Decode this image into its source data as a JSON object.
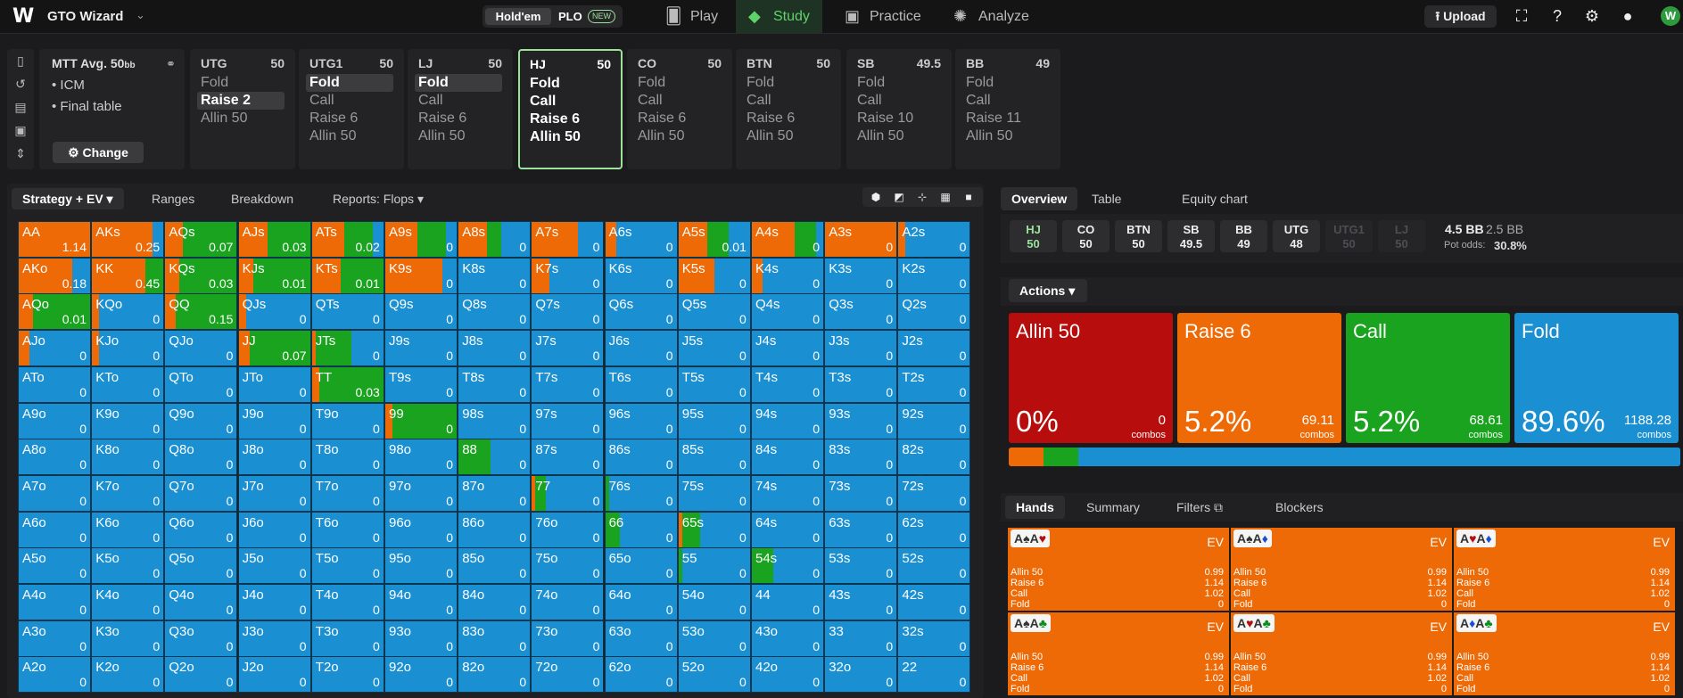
{
  "app": {
    "brand": "GTO Wizard",
    "mode_holdem": "Hold'em",
    "mode_plo": "PLO",
    "new_badge": "NEW"
  },
  "nav": [
    {
      "label": "Play",
      "icon": "card-icon"
    },
    {
      "label": "Study",
      "icon": "graduation-cap-icon",
      "active": true
    },
    {
      "label": "Practice",
      "icon": "gamepad-icon"
    },
    {
      "label": "Analyze",
      "icon": "bulb-icon"
    }
  ],
  "top_right": {
    "upload": "Upload"
  },
  "mtt": {
    "title": "MTT",
    "avg": "Avg. 50",
    "bb": "bb",
    "items": [
      "ICM",
      "Final table"
    ],
    "change": "Change"
  },
  "positions": [
    {
      "name": "UTG",
      "stack": "50",
      "actions": [
        "Fold",
        "Raise 2",
        "Allin 50"
      ],
      "selected": 1
    },
    {
      "name": "UTG1",
      "stack": "50",
      "actions": [
        "Fold",
        "Call",
        "Raise 6",
        "Allin 50"
      ],
      "selected": 0
    },
    {
      "name": "LJ",
      "stack": "50",
      "actions": [
        "Fold",
        "Call",
        "Raise 6",
        "Allin 50"
      ],
      "selected": 0
    },
    {
      "name": "HJ",
      "stack": "50",
      "actions": [
        "Fold",
        "Call",
        "Raise 6",
        "Allin 50"
      ],
      "selected": -1,
      "current": true
    },
    {
      "name": "CO",
      "stack": "50",
      "actions": [
        "Fold",
        "Call",
        "Raise 6",
        "Allin 50"
      ],
      "selected": -1
    },
    {
      "name": "BTN",
      "stack": "50",
      "actions": [
        "Fold",
        "Call",
        "Raise 6",
        "Allin 50"
      ],
      "selected": -1
    },
    {
      "name": "SB",
      "stack": "49.5",
      "actions": [
        "Fold",
        "Call",
        "Raise 10",
        "Allin 50"
      ],
      "selected": -1
    },
    {
      "name": "BB",
      "stack": "49",
      "actions": [
        "Fold",
        "Call",
        "Raise 11",
        "Allin 50"
      ],
      "selected": -1
    }
  ],
  "left_tabs": {
    "strategy": "Strategy + EV",
    "ranges": "Ranges",
    "breakdown": "Breakdown",
    "reports": "Reports: Flops"
  },
  "colors": {
    "fold": "#1a8fd2",
    "call": "#1aa31f",
    "raise": "#ee6a06",
    "allin": "#b80d0d"
  },
  "matrix": [
    [
      [
        "AA",
        "1.14",
        0,
        0,
        100
      ],
      [
        "AKs",
        "0.25",
        0,
        0,
        85
      ],
      [
        "AQs",
        "0.07",
        0,
        75,
        25
      ],
      [
        "AJs",
        "0.03",
        0,
        60,
        40
      ],
      [
        "ATs",
        "0.02",
        0,
        40,
        45
      ],
      [
        "A9s",
        "0",
        15,
        40,
        45
      ],
      [
        "A8s",
        "0",
        40,
        20,
        40
      ],
      [
        "A7s",
        "0",
        35,
        0,
        65
      ],
      [
        "A6s",
        "0",
        85,
        0,
        15
      ],
      [
        "A5s",
        "0.01",
        30,
        30,
        40
      ],
      [
        "A4s",
        "0",
        10,
        30,
        60
      ],
      [
        "A3s",
        "0",
        0,
        0,
        100
      ],
      [
        "A2s",
        "0",
        90,
        0,
        10
      ]
    ],
    [
      [
        "AKo",
        "0.18",
        25,
        0,
        75
      ],
      [
        "KK",
        "0.45",
        0,
        25,
        75
      ],
      [
        "KQs",
        "0.03",
        0,
        80,
        20
      ],
      [
        "KJs",
        "0.01",
        0,
        80,
        20
      ],
      [
        "KTs",
        "0.01",
        0,
        60,
        40
      ],
      [
        "K9s",
        "0",
        20,
        0,
        80
      ],
      [
        "K8s",
        "0",
        100,
        0,
        0
      ],
      [
        "K7s",
        "0",
        75,
        0,
        25
      ],
      [
        "K6s",
        "0",
        100,
        0,
        0
      ],
      [
        "K5s",
        "0",
        50,
        0,
        50
      ],
      [
        "K4s",
        "0",
        85,
        0,
        15
      ],
      [
        "K3s",
        "0",
        100,
        0,
        0
      ],
      [
        "K2s",
        "0",
        100,
        0,
        0
      ]
    ],
    [
      [
        "AQo",
        "0.01",
        0,
        80,
        20
      ],
      [
        "KQo",
        "0",
        90,
        0,
        10
      ],
      [
        "QQ",
        "0.15",
        0,
        85,
        15
      ],
      [
        "QJs",
        "0",
        90,
        0,
        10
      ],
      [
        "QTs",
        "0",
        100,
        0,
        0
      ],
      [
        "Q9s",
        "0",
        100,
        0,
        0
      ],
      [
        "Q8s",
        "0",
        100,
        0,
        0
      ],
      [
        "Q7s",
        "0",
        100,
        0,
        0
      ],
      [
        "Q6s",
        "0",
        100,
        0,
        0
      ],
      [
        "Q5s",
        "0",
        100,
        0,
        0
      ],
      [
        "Q4s",
        "0",
        100,
        0,
        0
      ],
      [
        "Q3s",
        "0",
        100,
        0,
        0
      ],
      [
        "Q2s",
        "0",
        100,
        0,
        0
      ]
    ],
    [
      [
        "AJo",
        "0",
        85,
        0,
        15
      ],
      [
        "KJo",
        "0",
        90,
        0,
        10
      ],
      [
        "QJo",
        "0",
        100,
        0,
        0
      ],
      [
        "JJ",
        "0.07",
        0,
        85,
        15
      ],
      [
        "JTs",
        "0",
        45,
        50,
        5
      ],
      [
        "J9s",
        "0",
        100,
        0,
        0
      ],
      [
        "J8s",
        "0",
        100,
        0,
        0
      ],
      [
        "J7s",
        "0",
        100,
        0,
        0
      ],
      [
        "J6s",
        "0",
        100,
        0,
        0
      ],
      [
        "J5s",
        "0",
        100,
        0,
        0
      ],
      [
        "J4s",
        "0",
        100,
        0,
        0
      ],
      [
        "J3s",
        "0",
        100,
        0,
        0
      ],
      [
        "J2s",
        "0",
        100,
        0,
        0
      ]
    ],
    [
      [
        "ATo",
        "0",
        100,
        0,
        0
      ],
      [
        "KTo",
        "0",
        100,
        0,
        0
      ],
      [
        "QTo",
        "0",
        100,
        0,
        0
      ],
      [
        "JTo",
        "0",
        100,
        0,
        0
      ],
      [
        "TT",
        "0.03",
        0,
        90,
        10
      ],
      [
        "T9s",
        "0",
        100,
        0,
        0
      ],
      [
        "T8s",
        "0",
        100,
        0,
        0
      ],
      [
        "T7s",
        "0",
        100,
        0,
        0
      ],
      [
        "T6s",
        "0",
        100,
        0,
        0
      ],
      [
        "T5s",
        "0",
        100,
        0,
        0
      ],
      [
        "T4s",
        "0",
        100,
        0,
        0
      ],
      [
        "T3s",
        "0",
        100,
        0,
        0
      ],
      [
        "T2s",
        "0",
        100,
        0,
        0
      ]
    ],
    [
      [
        "A9o",
        "0",
        100,
        0,
        0
      ],
      [
        "K9o",
        "0",
        100,
        0,
        0
      ],
      [
        "Q9o",
        "0",
        100,
        0,
        0
      ],
      [
        "J9o",
        "0",
        100,
        0,
        0
      ],
      [
        "T9o",
        "0",
        100,
        0,
        0
      ],
      [
        "99",
        "0",
        0,
        90,
        10
      ],
      [
        "98s",
        "0",
        100,
        0,
        0
      ],
      [
        "97s",
        "0",
        100,
        0,
        0
      ],
      [
        "96s",
        "0",
        100,
        0,
        0
      ],
      [
        "95s",
        "0",
        100,
        0,
        0
      ],
      [
        "94s",
        "0",
        100,
        0,
        0
      ],
      [
        "93s",
        "0",
        100,
        0,
        0
      ],
      [
        "92s",
        "0",
        100,
        0,
        0
      ]
    ],
    [
      [
        "A8o",
        "0",
        100,
        0,
        0
      ],
      [
        "K8o",
        "0",
        100,
        0,
        0
      ],
      [
        "Q8o",
        "0",
        100,
        0,
        0
      ],
      [
        "J8o",
        "0",
        100,
        0,
        0
      ],
      [
        "T8o",
        "0",
        100,
        0,
        0
      ],
      [
        "98o",
        "0",
        100,
        0,
        0
      ],
      [
        "88",
        "0",
        55,
        45,
        0
      ],
      [
        "87s",
        "0",
        100,
        0,
        0
      ],
      [
        "86s",
        "0",
        100,
        0,
        0
      ],
      [
        "85s",
        "0",
        100,
        0,
        0
      ],
      [
        "84s",
        "0",
        100,
        0,
        0
      ],
      [
        "83s",
        "0",
        100,
        0,
        0
      ],
      [
        "82s",
        "0",
        100,
        0,
        0
      ]
    ],
    [
      [
        "A7o",
        "0",
        100,
        0,
        0
      ],
      [
        "K7o",
        "0",
        100,
        0,
        0
      ],
      [
        "Q7o",
        "0",
        100,
        0,
        0
      ],
      [
        "J7o",
        "0",
        100,
        0,
        0
      ],
      [
        "T7o",
        "0",
        100,
        0,
        0
      ],
      [
        "97o",
        "0",
        100,
        0,
        0
      ],
      [
        "87o",
        "0",
        100,
        0,
        0
      ],
      [
        "77",
        "0",
        80,
        15,
        5
      ],
      [
        "76s",
        "0",
        95,
        5,
        0
      ],
      [
        "75s",
        "0",
        100,
        0,
        0
      ],
      [
        "74s",
        "0",
        100,
        0,
        0
      ],
      [
        "73s",
        "0",
        100,
        0,
        0
      ],
      [
        "72s",
        "0",
        100,
        0,
        0
      ]
    ],
    [
      [
        "A6o",
        "0",
        100,
        0,
        0
      ],
      [
        "K6o",
        "0",
        100,
        0,
        0
      ],
      [
        "Q6o",
        "0",
        100,
        0,
        0
      ],
      [
        "J6o",
        "0",
        100,
        0,
        0
      ],
      [
        "T6o",
        "0",
        100,
        0,
        0
      ],
      [
        "96o",
        "0",
        100,
        0,
        0
      ],
      [
        "86o",
        "0",
        100,
        0,
        0
      ],
      [
        "76o",
        "0",
        100,
        0,
        0
      ],
      [
        "66",
        "0",
        80,
        20,
        0
      ],
      [
        "65s",
        "0",
        70,
        25,
        5
      ],
      [
        "64s",
        "0",
        100,
        0,
        0
      ],
      [
        "63s",
        "0",
        100,
        0,
        0
      ],
      [
        "62s",
        "0",
        100,
        0,
        0
      ]
    ],
    [
      [
        "A5o",
        "0",
        100,
        0,
        0
      ],
      [
        "K5o",
        "0",
        100,
        0,
        0
      ],
      [
        "Q5o",
        "0",
        100,
        0,
        0
      ],
      [
        "J5o",
        "0",
        100,
        0,
        0
      ],
      [
        "T5o",
        "0",
        100,
        0,
        0
      ],
      [
        "95o",
        "0",
        100,
        0,
        0
      ],
      [
        "85o",
        "0",
        100,
        0,
        0
      ],
      [
        "75o",
        "0",
        100,
        0,
        0
      ],
      [
        "65o",
        "0",
        100,
        0,
        0
      ],
      [
        "55",
        "0",
        95,
        5,
        0
      ],
      [
        "54s",
        "0",
        70,
        30,
        0
      ],
      [
        "53s",
        "0",
        100,
        0,
        0
      ],
      [
        "52s",
        "0",
        100,
        0,
        0
      ]
    ],
    [
      [
        "A4o",
        "0",
        100,
        0,
        0
      ],
      [
        "K4o",
        "0",
        100,
        0,
        0
      ],
      [
        "Q4o",
        "0",
        100,
        0,
        0
      ],
      [
        "J4o",
        "0",
        100,
        0,
        0
      ],
      [
        "T4o",
        "0",
        100,
        0,
        0
      ],
      [
        "94o",
        "0",
        100,
        0,
        0
      ],
      [
        "84o",
        "0",
        100,
        0,
        0
      ],
      [
        "74o",
        "0",
        100,
        0,
        0
      ],
      [
        "64o",
        "0",
        100,
        0,
        0
      ],
      [
        "54o",
        "0",
        100,
        0,
        0
      ],
      [
        "44",
        "0",
        100,
        0,
        0
      ],
      [
        "43s",
        "0",
        100,
        0,
        0
      ],
      [
        "42s",
        "0",
        100,
        0,
        0
      ]
    ],
    [
      [
        "A3o",
        "0",
        100,
        0,
        0
      ],
      [
        "K3o",
        "0",
        100,
        0,
        0
      ],
      [
        "Q3o",
        "0",
        100,
        0,
        0
      ],
      [
        "J3o",
        "0",
        100,
        0,
        0
      ],
      [
        "T3o",
        "0",
        100,
        0,
        0
      ],
      [
        "93o",
        "0",
        100,
        0,
        0
      ],
      [
        "83o",
        "0",
        100,
        0,
        0
      ],
      [
        "73o",
        "0",
        100,
        0,
        0
      ],
      [
        "63o",
        "0",
        100,
        0,
        0
      ],
      [
        "53o",
        "0",
        100,
        0,
        0
      ],
      [
        "43o",
        "0",
        100,
        0,
        0
      ],
      [
        "33",
        "0",
        100,
        0,
        0
      ],
      [
        "32s",
        "0",
        100,
        0,
        0
      ]
    ],
    [
      [
        "A2o",
        "0",
        100,
        0,
        0
      ],
      [
        "K2o",
        "0",
        100,
        0,
        0
      ],
      [
        "Q2o",
        "0",
        100,
        0,
        0
      ],
      [
        "J2o",
        "0",
        100,
        0,
        0
      ],
      [
        "T2o",
        "0",
        100,
        0,
        0
      ],
      [
        "92o",
        "0",
        100,
        0,
        0
      ],
      [
        "82o",
        "0",
        100,
        0,
        0
      ],
      [
        "72o",
        "0",
        100,
        0,
        0
      ],
      [
        "62o",
        "0",
        100,
        0,
        0
      ],
      [
        "52o",
        "0",
        100,
        0,
        0
      ],
      [
        "42o",
        "0",
        100,
        0,
        0
      ],
      [
        "32o",
        "0",
        100,
        0,
        0
      ],
      [
        "22",
        "0",
        100,
        0,
        0
      ]
    ]
  ],
  "right_tabs": {
    "overview": "Overview",
    "table": "Table",
    "equity": "Equity chart"
  },
  "seats": [
    {
      "name": "HJ",
      "stack": "50",
      "state": "cur"
    },
    {
      "name": "CO",
      "stack": "50",
      "state": ""
    },
    {
      "name": "BTN",
      "stack": "50",
      "state": ""
    },
    {
      "name": "SB",
      "stack": "49.5",
      "state": ""
    },
    {
      "name": "BB",
      "stack": "49",
      "state": ""
    },
    {
      "name": "UTG",
      "stack": "48",
      "state": ""
    },
    {
      "name": "UTG1",
      "stack": "50",
      "state": "dim"
    },
    {
      "name": "LJ",
      "stack": "50",
      "state": "dim"
    }
  ],
  "pot": {
    "pot": "4.5 BB",
    "to_call": "2.5 BB",
    "odds_label": "Pot odds:",
    "odds": "30.8%"
  },
  "actions_label": "Actions",
  "action_cards": [
    {
      "name": "Allin 50",
      "pct": "0%",
      "combos": "0",
      "combos_label": "combos",
      "color": "#b80d0d"
    },
    {
      "name": "Raise 6",
      "pct": "5.2%",
      "combos": "69.11",
      "combos_label": "combos",
      "color": "#ee6a06"
    },
    {
      "name": "Call",
      "pct": "5.2%",
      "combos": "68.61",
      "combos_label": "combos",
      "color": "#1aa31f"
    },
    {
      "name": "Fold",
      "pct": "89.6%",
      "combos": "1188.28",
      "combos_label": "combos",
      "color": "#1a8fd2"
    }
  ],
  "freq": {
    "allin": 0,
    "raise": 5.2,
    "call": 5.2,
    "fold": 89.6
  },
  "hand_tabs": {
    "hands": "Hands",
    "summary": "Summary",
    "filters": "Filters",
    "blockers": "Blockers"
  },
  "hands": [
    {
      "c1": "A",
      "s1": "♠",
      "k1": "sblack",
      "c2": "A",
      "s2": "♥",
      "k2": "sred",
      "ev": "EV"
    },
    {
      "c1": "A",
      "s1": "♠",
      "k1": "sblack",
      "c2": "A",
      "s2": "♦",
      "k2": "sblue",
      "ev": "EV"
    },
    {
      "c1": "A",
      "s1": "♥",
      "k1": "sred",
      "c2": "A",
      "s2": "♦",
      "k2": "sblue",
      "ev": "EV"
    },
    {
      "c1": "A",
      "s1": "♠",
      "k1": "sblack",
      "c2": "A",
      "s2": "♣",
      "k2": "sgreen",
      "ev": "EV"
    },
    {
      "c1": "A",
      "s1": "♥",
      "k1": "sred",
      "c2": "A",
      "s2": "♣",
      "k2": "sgreen",
      "ev": "EV"
    },
    {
      "c1": "A",
      "s1": "♦",
      "k1": "sblue",
      "c2": "A",
      "s2": "♣",
      "k2": "sgreen",
      "ev": "EV"
    }
  ],
  "hand_rows": [
    [
      "Allin 50",
      "0.99"
    ],
    [
      "Raise 6",
      "1.14"
    ],
    [
      "Call",
      "1.02"
    ],
    [
      "Fold",
      "0"
    ]
  ]
}
